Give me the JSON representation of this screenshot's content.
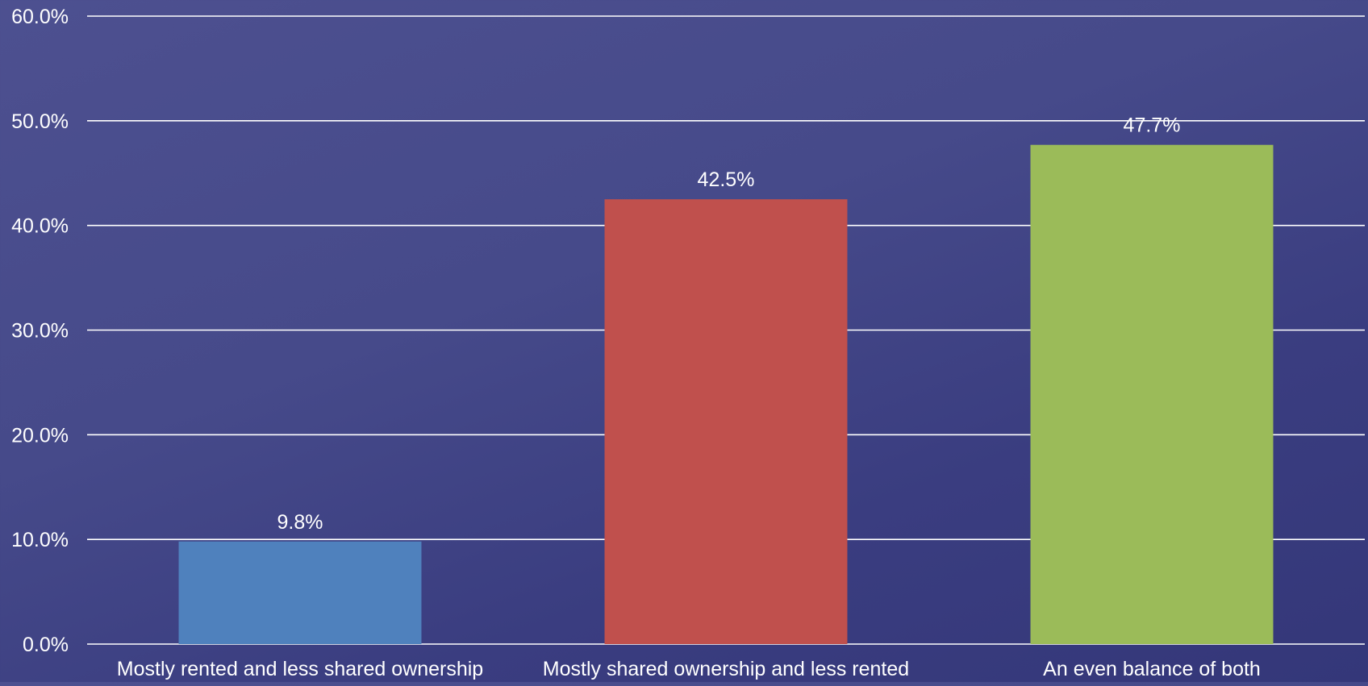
{
  "chart_data": {
    "type": "bar",
    "title": "",
    "xlabel": "",
    "ylabel": "",
    "categories": [
      "Mostly rented and less shared ownership",
      "Mostly shared ownership and less rented",
      "An even balance of both"
    ],
    "values": [
      9.8,
      42.5,
      47.7
    ],
    "value_labels": [
      "9.8%",
      "42.5%",
      "47.7%"
    ],
    "bar_colors": [
      "#4f81bd",
      "#c0504d",
      "#9bbb59"
    ],
    "ylim": [
      0,
      60
    ],
    "yticks": [
      0,
      10,
      20,
      30,
      40,
      50,
      60
    ],
    "ytick_labels": [
      "0.0%",
      "10.0%",
      "20.0%",
      "30.0%",
      "40.0%",
      "50.0%",
      "60.0%"
    ],
    "grid": true,
    "legend": false
  },
  "colors": {
    "background": "#444888",
    "gridline": "#ffffff",
    "text": "#ffffff"
  }
}
